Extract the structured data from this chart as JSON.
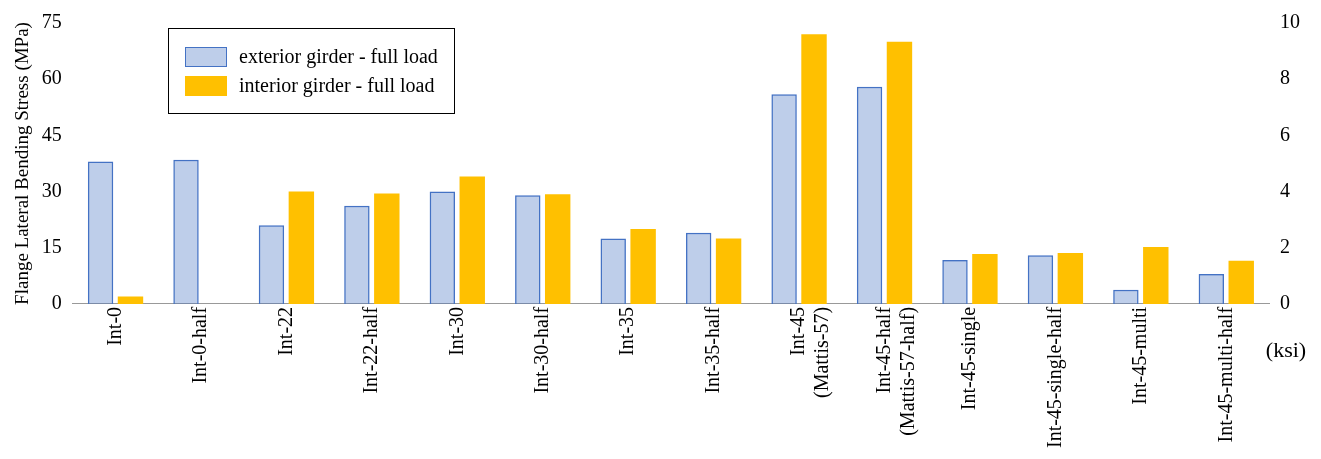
{
  "chart_data": {
    "type": "bar",
    "ylabel": "Flange Lateral Bending Stress (MPa)",
    "y2label": "(ksi)",
    "categories": [
      "Int-0",
      "Int-0-half",
      "Int-22",
      "Int-22-half",
      "Int-30",
      "Int-30-half",
      "Int-35",
      "Int-35-half",
      "Int-45 (Mattis-57)",
      "Int-45-half (Mattis-57-half)",
      "Int-45-single",
      "Int-45-single-half",
      "Int-45-multi",
      "Int-45-multi-half"
    ],
    "series": [
      {
        "name": "exterior girder - full load",
        "color": "#4472c4",
        "values": [
          38,
          38.5,
          21,
          26.2,
          30,
          29,
          17.5,
          19,
          56,
          58,
          11.7,
          13,
          3.8,
          8
        ]
      },
      {
        "name": "interior girder - full load",
        "color": "#ffc000",
        "values": [
          2,
          0,
          30,
          29.5,
          34,
          29.3,
          20,
          17.5,
          72,
          70,
          13.3,
          13.6,
          15.2,
          11.5
        ]
      }
    ],
    "ylim": [
      0,
      75
    ],
    "yticks": [
      0,
      15,
      30,
      45,
      60,
      75
    ],
    "y2lim": [
      0,
      10
    ],
    "y2ticks": [
      0,
      2,
      4,
      6,
      8,
      10
    ],
    "grid": false,
    "legend": "top left"
  }
}
